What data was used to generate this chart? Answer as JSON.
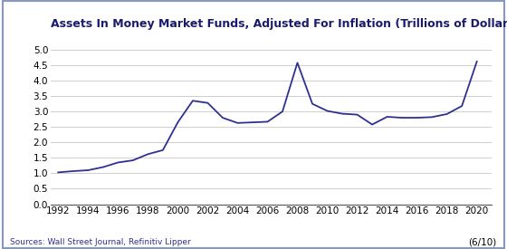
{
  "title": "Assets In Money Market Funds, Adjusted For Inflation (Trillions of Dollars)",
  "source_text": "Sources: Wall Street Journal, Refinitiv Lipper",
  "x_label_note": "(6/10)",
  "line_color": "#2e3192",
  "background_color": "#ffffff",
  "border_color": "#8899bb",
  "ylim": [
    0.0,
    5.0
  ],
  "yticks": [
    0.0,
    0.5,
    1.0,
    1.5,
    2.0,
    2.5,
    3.0,
    3.5,
    4.0,
    4.5,
    5.0
  ],
  "xticks": [
    1992,
    1994,
    1996,
    1998,
    2000,
    2002,
    2004,
    2006,
    2008,
    2010,
    2012,
    2014,
    2016,
    2018,
    2020
  ],
  "xlim": [
    1991.5,
    2021.0
  ],
  "data_x": [
    1992,
    1993,
    1994,
    1995,
    1996,
    1997,
    1998,
    1999,
    2000,
    2001,
    2002,
    2003,
    2004,
    2005,
    2006,
    2007,
    2008,
    2009,
    2010,
    2011,
    2012,
    2013,
    2014,
    2015,
    2016,
    2017,
    2018,
    2019,
    2020
  ],
  "data_y": [
    1.03,
    1.07,
    1.1,
    1.2,
    1.35,
    1.42,
    1.62,
    1.75,
    2.65,
    3.35,
    3.28,
    2.8,
    2.63,
    2.65,
    2.67,
    3.0,
    4.58,
    3.25,
    3.02,
    2.93,
    2.9,
    2.58,
    2.83,
    2.8,
    2.8,
    2.82,
    2.92,
    3.18,
    4.62
  ],
  "title_fontsize": 9.0,
  "tick_fontsize": 7.5,
  "source_fontsize": 6.5,
  "note_fontsize": 7.5
}
